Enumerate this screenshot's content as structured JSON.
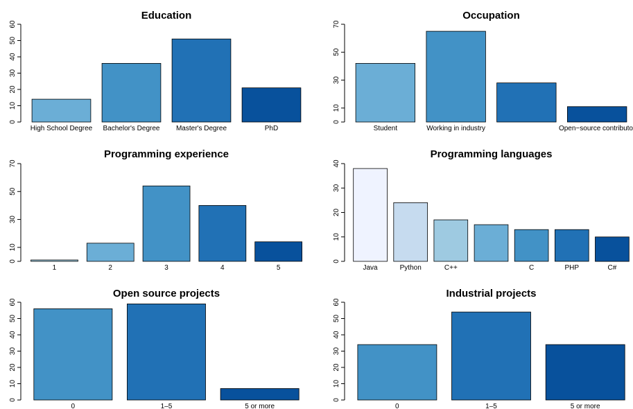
{
  "chart_data": [
    {
      "type": "bar",
      "title": "Education",
      "categories": [
        "High School Degree",
        "Bachelor's Degree",
        "Master's Degree",
        "PhD"
      ],
      "values": [
        14,
        36,
        51,
        21
      ],
      "ylim": [
        0,
        60
      ],
      "yticks": [
        0,
        10,
        20,
        30,
        40,
        50,
        60
      ],
      "colors": [
        "#6BAED6",
        "#4292C6",
        "#2171B5",
        "#08519C"
      ],
      "xlabel": "",
      "ylabel": ""
    },
    {
      "type": "bar",
      "title": "Occupation",
      "categories": [
        "Student",
        "Working in industry",
        "",
        "Open−source contributor"
      ],
      "values": [
        42,
        65,
        28,
        11
      ],
      "ylim": [
        0,
        70
      ],
      "yticks": [
        0,
        10,
        30,
        50,
        70
      ],
      "colors": [
        "#6BAED6",
        "#4292C6",
        "#2171B5",
        "#08519C"
      ],
      "xlabel": "",
      "ylabel": ""
    },
    {
      "type": "bar",
      "title": "Programming experience",
      "categories": [
        "1",
        "2",
        "3",
        "4",
        "5"
      ],
      "values": [
        1,
        13,
        54,
        40,
        14
      ],
      "ylim": [
        0,
        70
      ],
      "yticks": [
        0,
        10,
        30,
        50,
        70
      ],
      "colors": [
        "#9ECAE1",
        "#6BAED6",
        "#4292C6",
        "#2171B5",
        "#08519C"
      ],
      "xlabel": "",
      "ylabel": ""
    },
    {
      "type": "bar",
      "title": "Programming languages",
      "categories": [
        "Java",
        "Python",
        "C++",
        "",
        "C",
        "PHP",
        "C#"
      ],
      "values": [
        38,
        24,
        17,
        15,
        13,
        13,
        10
      ],
      "ylim": [
        0,
        40
      ],
      "yticks": [
        0,
        10,
        20,
        30,
        40
      ],
      "colors": [
        "#EFF3FF",
        "#C6DBEF",
        "#9ECAE1",
        "#6BAED6",
        "#4292C6",
        "#2171B5",
        "#08519C"
      ],
      "xlabel": "",
      "ylabel": ""
    },
    {
      "type": "bar",
      "title": "Open source projects",
      "categories": [
        "0",
        "1–5",
        "5 or more"
      ],
      "values": [
        56,
        59,
        7
      ],
      "ylim": [
        0,
        60
      ],
      "yticks": [
        0,
        10,
        20,
        30,
        40,
        50,
        60
      ],
      "colors": [
        "#4292C6",
        "#2171B5",
        "#08519C"
      ],
      "xlabel": "",
      "ylabel": ""
    },
    {
      "type": "bar",
      "title": "Industrial projects",
      "categories": [
        "0",
        "1–5",
        "5 or more"
      ],
      "values": [
        34,
        54,
        34
      ],
      "ylim": [
        0,
        60
      ],
      "yticks": [
        0,
        10,
        20,
        30,
        40,
        50,
        60
      ],
      "colors": [
        "#4292C6",
        "#2171B5",
        "#08519C"
      ],
      "xlabel": "",
      "ylabel": ""
    }
  ]
}
